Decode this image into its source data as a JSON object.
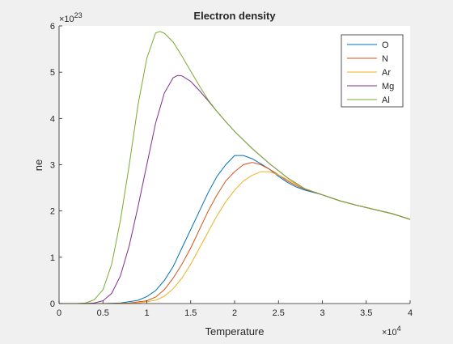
{
  "chart_data": {
    "type": "line",
    "title": "Electron density",
    "xlabel": "Temperature",
    "ylabel": "ne",
    "x_exponent_label": "×10",
    "x_exponent_power": "4",
    "y_exponent_label": "×10",
    "y_exponent_power": "23",
    "xlim": [
      0,
      4
    ],
    "ylim": [
      0,
      6
    ],
    "x_ticks": [
      0,
      0.5,
      1,
      1.5,
      2,
      2.5,
      3,
      3.5,
      4
    ],
    "x_tick_labels": [
      "0",
      "0.5",
      "1",
      "1.5",
      "2",
      "2.5",
      "3",
      "3.5",
      "4"
    ],
    "y_ticks": [
      0,
      1,
      2,
      3,
      4,
      5,
      6
    ],
    "y_tick_labels": [
      "0",
      "1",
      "2",
      "3",
      "4",
      "5",
      "6"
    ],
    "grid": false,
    "legend_position": "top-right",
    "x_units_note": "x in units of 1e4, y in units of 1e23",
    "series": [
      {
        "name": "O",
        "color": "#0072BD",
        "points": [
          [
            0,
            0
          ],
          [
            0.5,
            0
          ],
          [
            0.7,
            0.01
          ],
          [
            0.9,
            0.07
          ],
          [
            1.0,
            0.15
          ],
          [
            1.1,
            0.28
          ],
          [
            1.2,
            0.5
          ],
          [
            1.3,
            0.8
          ],
          [
            1.4,
            1.2
          ],
          [
            1.5,
            1.6
          ],
          [
            1.6,
            2.0
          ],
          [
            1.7,
            2.4
          ],
          [
            1.8,
            2.75
          ],
          [
            1.9,
            3.0
          ],
          [
            2.0,
            3.2
          ],
          [
            2.1,
            3.2
          ],
          [
            2.2,
            3.13
          ],
          [
            2.3,
            3.02
          ],
          [
            2.4,
            2.9
          ],
          [
            2.5,
            2.75
          ],
          [
            2.6,
            2.62
          ],
          [
            2.7,
            2.52
          ],
          [
            2.8,
            2.45
          ],
          [
            3.0,
            2.35
          ],
          [
            3.2,
            2.22
          ],
          [
            3.4,
            2.12
          ],
          [
            3.6,
            2.03
          ],
          [
            3.8,
            1.94
          ],
          [
            4.0,
            1.82
          ]
        ]
      },
      {
        "name": "N",
        "color": "#D95319",
        "points": [
          [
            0,
            0
          ],
          [
            0.6,
            0
          ],
          [
            0.8,
            0.01
          ],
          [
            1.0,
            0.06
          ],
          [
            1.1,
            0.14
          ],
          [
            1.2,
            0.3
          ],
          [
            1.3,
            0.55
          ],
          [
            1.4,
            0.85
          ],
          [
            1.5,
            1.2
          ],
          [
            1.6,
            1.6
          ],
          [
            1.7,
            2.0
          ],
          [
            1.8,
            2.35
          ],
          [
            1.9,
            2.65
          ],
          [
            2.0,
            2.85
          ],
          [
            2.1,
            3.0
          ],
          [
            2.2,
            3.05
          ],
          [
            2.3,
            3.0
          ],
          [
            2.4,
            2.9
          ],
          [
            2.5,
            2.78
          ],
          [
            2.6,
            2.65
          ],
          [
            2.7,
            2.55
          ],
          [
            2.8,
            2.47
          ],
          [
            3.0,
            2.35
          ],
          [
            3.2,
            2.22
          ],
          [
            3.4,
            2.12
          ],
          [
            3.6,
            2.03
          ],
          [
            3.8,
            1.94
          ],
          [
            4.0,
            1.82
          ]
        ]
      },
      {
        "name": "Ar",
        "color": "#EDB120",
        "points": [
          [
            0,
            0
          ],
          [
            0.7,
            0
          ],
          [
            0.9,
            0.01
          ],
          [
            1.1,
            0.07
          ],
          [
            1.2,
            0.16
          ],
          [
            1.3,
            0.32
          ],
          [
            1.4,
            0.55
          ],
          [
            1.5,
            0.85
          ],
          [
            1.6,
            1.2
          ],
          [
            1.7,
            1.55
          ],
          [
            1.8,
            1.9
          ],
          [
            1.9,
            2.2
          ],
          [
            2.0,
            2.45
          ],
          [
            2.1,
            2.65
          ],
          [
            2.2,
            2.77
          ],
          [
            2.3,
            2.85
          ],
          [
            2.4,
            2.85
          ],
          [
            2.5,
            2.78
          ],
          [
            2.6,
            2.68
          ],
          [
            2.7,
            2.58
          ],
          [
            2.8,
            2.48
          ],
          [
            3.0,
            2.35
          ],
          [
            3.2,
            2.22
          ],
          [
            3.4,
            2.12
          ],
          [
            3.6,
            2.03
          ],
          [
            3.8,
            1.94
          ],
          [
            4.0,
            1.82
          ]
        ]
      },
      {
        "name": "Mg",
        "color": "#7E2F8E",
        "points": [
          [
            0,
            0
          ],
          [
            0.3,
            0
          ],
          [
            0.4,
            0.01
          ],
          [
            0.5,
            0.06
          ],
          [
            0.6,
            0.22
          ],
          [
            0.7,
            0.6
          ],
          [
            0.8,
            1.25
          ],
          [
            0.9,
            2.1
          ],
          [
            1.0,
            3.0
          ],
          [
            1.1,
            3.9
          ],
          [
            1.2,
            4.55
          ],
          [
            1.3,
            4.88
          ],
          [
            1.35,
            4.93
          ],
          [
            1.4,
            4.92
          ],
          [
            1.5,
            4.8
          ],
          [
            1.6,
            4.6
          ],
          [
            1.7,
            4.38
          ],
          [
            1.8,
            4.15
          ],
          [
            1.9,
            3.93
          ],
          [
            2.0,
            3.72
          ],
          [
            2.2,
            3.35
          ],
          [
            2.4,
            3.02
          ],
          [
            2.6,
            2.72
          ],
          [
            2.8,
            2.48
          ],
          [
            3.0,
            2.35
          ],
          [
            3.2,
            2.22
          ],
          [
            3.4,
            2.12
          ],
          [
            3.6,
            2.03
          ],
          [
            3.8,
            1.94
          ],
          [
            4.0,
            1.82
          ]
        ]
      },
      {
        "name": "Al",
        "color": "#77AC30",
        "points": [
          [
            0,
            0
          ],
          [
            0.2,
            0
          ],
          [
            0.3,
            0.01
          ],
          [
            0.4,
            0.08
          ],
          [
            0.5,
            0.3
          ],
          [
            0.6,
            0.85
          ],
          [
            0.7,
            1.8
          ],
          [
            0.8,
            3.0
          ],
          [
            0.9,
            4.3
          ],
          [
            1.0,
            5.3
          ],
          [
            1.1,
            5.85
          ],
          [
            1.15,
            5.88
          ],
          [
            1.2,
            5.84
          ],
          [
            1.3,
            5.65
          ],
          [
            1.4,
            5.35
          ],
          [
            1.5,
            5.02
          ],
          [
            1.6,
            4.7
          ],
          [
            1.7,
            4.4
          ],
          [
            1.8,
            4.15
          ],
          [
            1.9,
            3.93
          ],
          [
            2.0,
            3.72
          ],
          [
            2.2,
            3.35
          ],
          [
            2.4,
            3.02
          ],
          [
            2.6,
            2.72
          ],
          [
            2.8,
            2.48
          ],
          [
            3.0,
            2.35
          ],
          [
            3.2,
            2.22
          ],
          [
            3.4,
            2.12
          ],
          [
            3.6,
            2.03
          ],
          [
            3.8,
            1.94
          ],
          [
            4.0,
            1.82
          ]
        ]
      }
    ]
  }
}
